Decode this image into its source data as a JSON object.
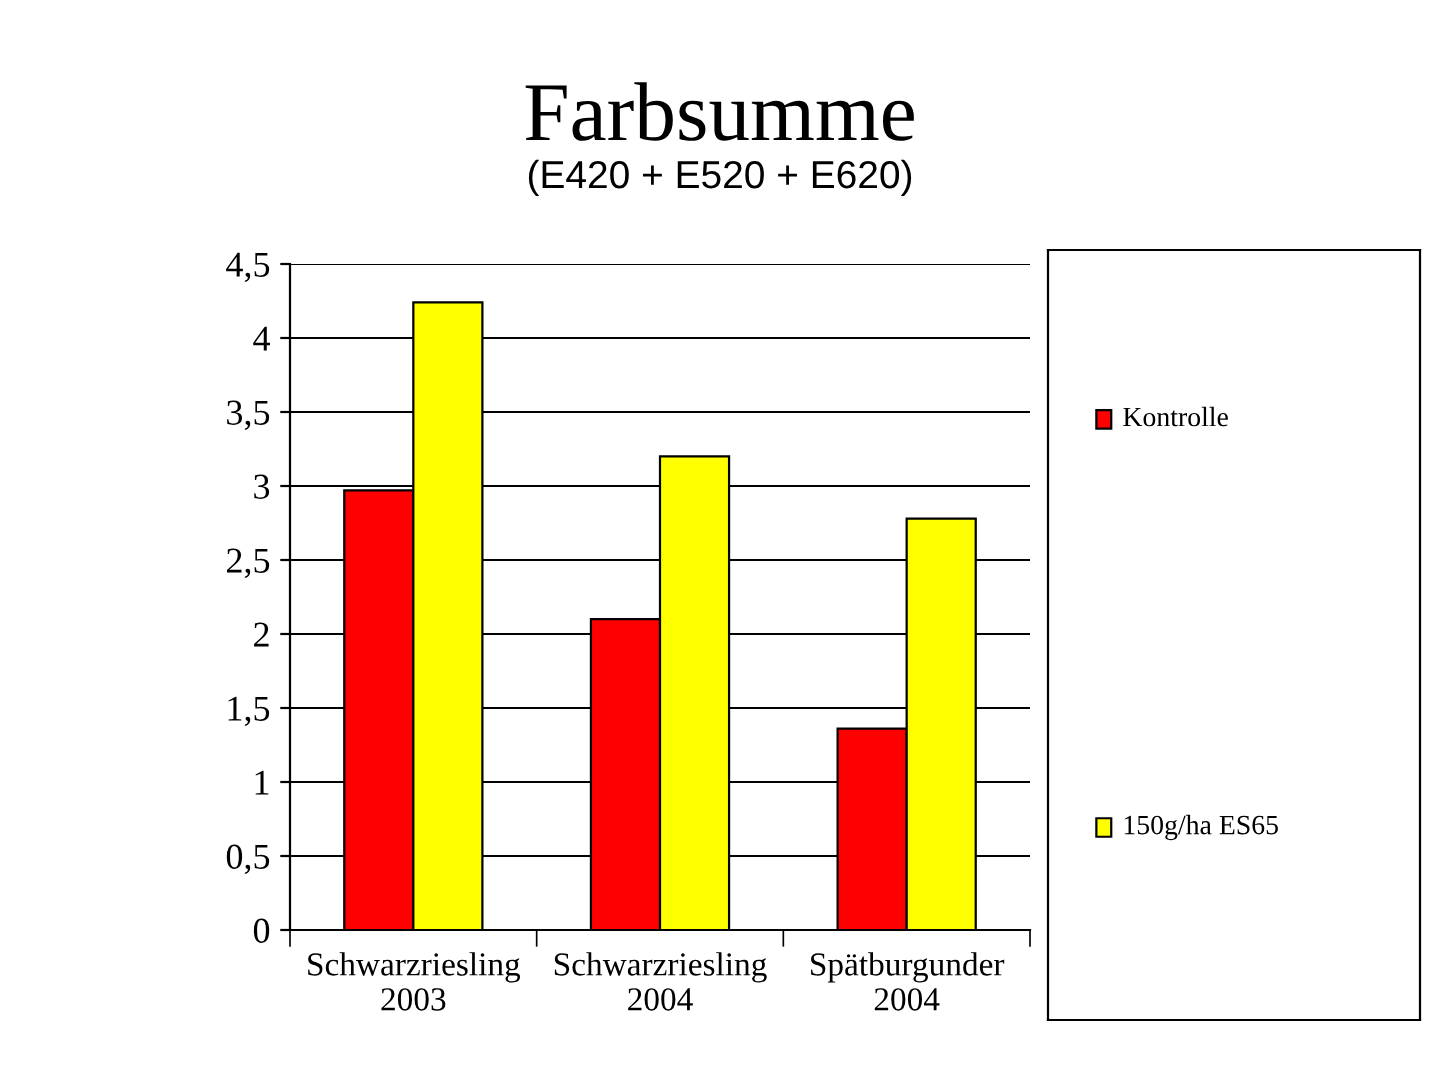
{
  "chart_data": {
    "type": "bar",
    "title": "Farbsumme",
    "subtitle": "(E420 + E520 + E620)",
    "categories": [
      "Schwarzriesling\n2003",
      "Schwarzriesling\n2004",
      "Spätburgunder\n2004"
    ],
    "series": [
      {
        "name": "Kontrolle",
        "color": "#ff0000",
        "values": [
          2.97,
          2.1,
          1.36
        ]
      },
      {
        "name": "150g/ha ES65",
        "color": "#ffff00",
        "values": [
          4.24,
          3.2,
          2.78
        ]
      }
    ],
    "ylim": [
      0,
      4.5
    ],
    "yticks": [
      0,
      {
        "value": 0.5,
        "label": "0,5"
      },
      1,
      {
        "value": 1.5,
        "label": "1,5"
      },
      2,
      {
        "value": 2.5,
        "label": "2,5"
      },
      3,
      {
        "value": 3.5,
        "label": "3,5"
      },
      4,
      {
        "value": 4.5,
        "label": "4,5"
      }
    ],
    "grid": "y",
    "legend": "right"
  }
}
